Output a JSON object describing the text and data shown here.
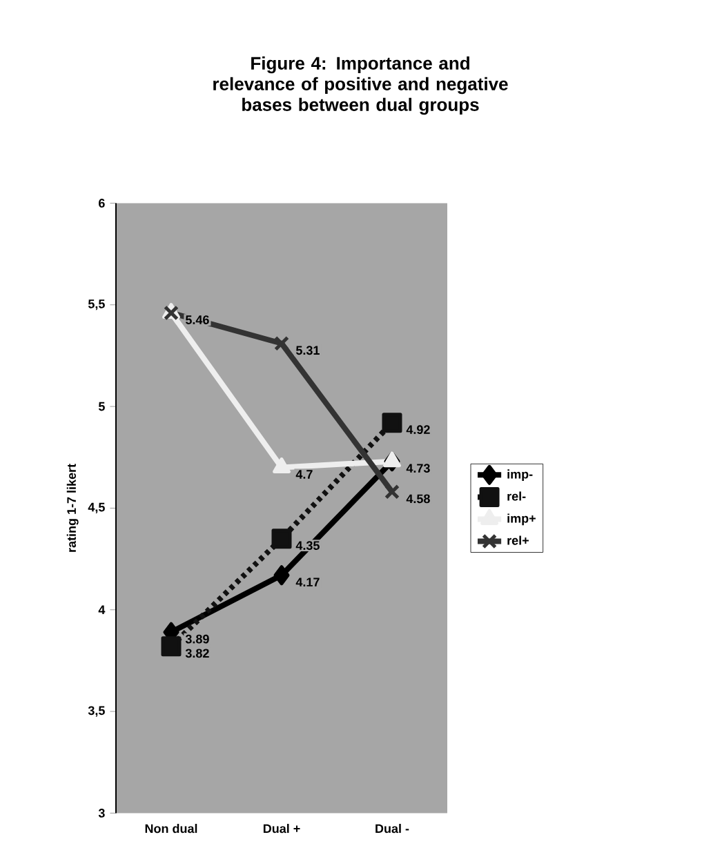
{
  "chart_data": {
    "type": "line",
    "title": "Figure 4: Importance and relevance of positive and negative bases between dual groups",
    "ylabel": "rating 1-7 likert",
    "categories": [
      "Non dual",
      "Dual +",
      "Dual -"
    ],
    "series": [
      {
        "name": "imp-",
        "color": "#000000",
        "marker": "diamond",
        "line_style": "solid",
        "values": [
          3.89,
          4.17,
          4.73
        ],
        "value_labels": [
          "3.89",
          "4.17",
          null
        ]
      },
      {
        "name": "rel-",
        "color": "#111111",
        "marker": "square",
        "line_style": "dashed",
        "values": [
          3.82,
          4.35,
          4.92
        ],
        "value_labels": [
          "3.82",
          "4.35",
          "4.92"
        ]
      },
      {
        "name": "imp+",
        "color": "#eeeeee",
        "marker": "triangle",
        "line_style": "solid",
        "values": [
          5.46,
          4.7,
          4.73
        ],
        "value_labels": [
          null,
          "4.7",
          "4.73"
        ]
      },
      {
        "name": "rel+",
        "color": "#333333",
        "marker": "cross",
        "line_style": "solid",
        "values": [
          5.46,
          5.31,
          4.58
        ],
        "value_labels": [
          "5.46",
          "5.31",
          "4.58"
        ]
      }
    ],
    "ylim": [
      3,
      6
    ],
    "yticks": [
      {
        "value": 3,
        "label": "3"
      },
      {
        "value": 3.5,
        "label": "3,5"
      },
      {
        "value": 4,
        "label": "4"
      },
      {
        "value": 4.5,
        "label": "4,5"
      },
      {
        "value": 5,
        "label": "5"
      },
      {
        "value": 5.5,
        "label": "5,5"
      },
      {
        "value": 6,
        "label": "6"
      }
    ],
    "grid": false,
    "legend": "right"
  }
}
